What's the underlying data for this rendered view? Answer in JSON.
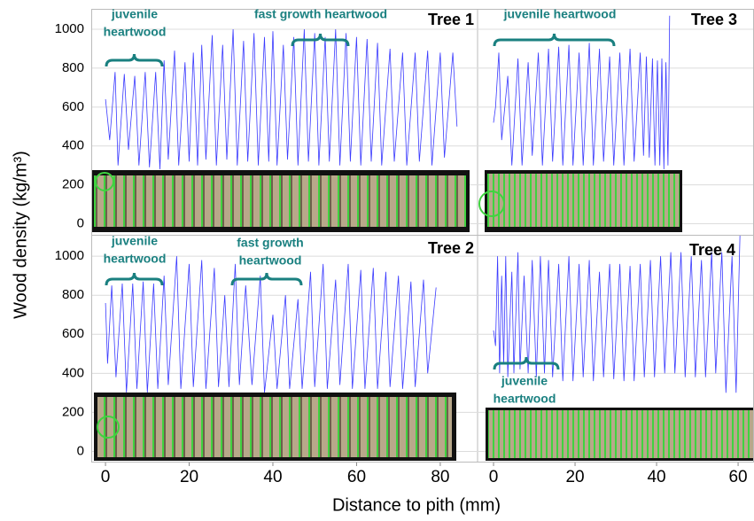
{
  "xlabel": "Distance to pith (mm)",
  "ylabel": "Wood density (kg/m³)",
  "chart_data": [
    {
      "type": "line",
      "title": "Tree 1",
      "color": "#3a3aff",
      "xlim": [
        -3.4,
        88.7
      ],
      "ylim": [
        -57,
        1105
      ],
      "yticks": [
        0,
        200,
        400,
        600,
        800,
        1000
      ],
      "grid": true,
      "annotations": [
        {
          "lines": [
            "juvenile",
            "heartwood"
          ]
        },
        {
          "lines": [
            "fast growth heartwood"
          ]
        }
      ],
      "x": [
        0,
        1,
        2.3,
        3,
        4.5,
        5.5,
        7,
        8,
        9.5,
        10.5,
        12,
        13,
        14,
        15,
        16.5,
        17.5,
        19,
        20,
        21,
        22,
        23,
        24,
        25.5,
        26.5,
        28,
        29,
        30.5,
        31.5,
        33,
        34,
        35.5,
        36.5,
        38,
        39,
        40,
        41,
        42.5,
        43.5,
        45,
        46,
        47.5,
        48.5,
        50,
        51,
        52.5,
        53.5,
        55,
        56,
        57.5,
        58.5,
        60,
        61,
        62.5,
        63.5,
        65,
        66,
        68,
        69,
        71,
        72,
        74,
        75,
        77,
        78,
        80,
        81,
        83,
        84
      ],
      "values": [
        640,
        430,
        780,
        300,
        770,
        380,
        760,
        300,
        780,
        290,
        780,
        280,
        840,
        330,
        890,
        300,
        830,
        320,
        880,
        300,
        920,
        330,
        970,
        300,
        920,
        330,
        1000,
        300,
        940,
        320,
        980,
        300,
        960,
        320,
        990,
        300,
        920,
        330,
        960,
        300,
        1000,
        320,
        980,
        300,
        960,
        320,
        1000,
        300,
        980,
        320,
        960,
        300,
        950,
        320,
        930,
        300,
        900,
        320,
        880,
        300,
        880,
        320,
        890,
        300,
        880,
        340,
        880,
        500
      ]
    },
    {
      "type": "line",
      "title": "Tree 2",
      "color": "#3a3aff",
      "xlim": [
        -3.4,
        88.7
      ],
      "ylim": [
        -57,
        1105
      ],
      "xticks": [
        0,
        20,
        40,
        60,
        80
      ],
      "yticks": [
        0,
        200,
        400,
        600,
        800,
        1000
      ],
      "grid": true,
      "annotations": [
        {
          "lines": [
            "juvenile",
            "heartwood"
          ]
        },
        {
          "lines": [
            "fast growth",
            "heartwood"
          ]
        }
      ],
      "x": [
        0,
        0.5,
        1.5,
        2.5,
        4,
        5,
        6.5,
        7.5,
        9,
        10,
        11.5,
        12.5,
        14,
        15,
        17,
        18,
        20,
        21,
        23,
        24,
        26,
        27,
        28.5,
        29.5,
        31,
        32,
        33.5,
        35,
        37,
        38,
        40,
        41,
        43,
        44,
        46,
        47,
        49,
        50,
        52,
        53,
        55,
        56,
        58,
        59,
        61,
        62,
        64,
        65,
        67,
        68,
        70,
        71,
        73,
        74,
        76,
        77,
        79
      ],
      "values": [
        760,
        450,
        850,
        380,
        860,
        300,
        860,
        320,
        870,
        300,
        860,
        320,
        900,
        340,
        1000,
        320,
        960,
        330,
        980,
        320,
        940,
        330,
        800,
        330,
        960,
        340,
        850,
        340,
        900,
        300,
        700,
        320,
        800,
        320,
        780,
        320,
        920,
        330,
        960,
        320,
        880,
        340,
        960,
        320,
        930,
        320,
        940,
        320,
        920,
        330,
        900,
        320,
        870,
        330,
        880,
        400,
        840
      ]
    },
    {
      "type": "line",
      "title": "Tree 3",
      "color": "#3a3aff",
      "xlim": [
        -3.7,
        63.9
      ],
      "ylim": [
        -57,
        1105
      ],
      "yticks": [
        0,
        200,
        400,
        600,
        800,
        1000
      ],
      "grid": true,
      "annotations": [
        {
          "lines": [
            "juvenile heartwood"
          ]
        }
      ],
      "x": [
        0,
        0.5,
        1.3,
        2,
        3.5,
        4.5,
        6,
        7,
        8.5,
        9.5,
        11,
        12,
        13.5,
        14.5,
        16,
        17,
        18.5,
        19.5,
        21,
        22,
        23.5,
        24.5,
        26,
        27,
        28.5,
        29.5,
        31,
        32,
        33.5,
        34.5,
        36,
        36.8,
        37.5,
        38.2,
        39,
        39.6,
        40.2,
        40.8,
        41.3,
        41.8,
        42.3,
        42.8,
        43.2
      ],
      "values": [
        520,
        600,
        880,
        430,
        760,
        300,
        850,
        300,
        830,
        350,
        880,
        300,
        900,
        320,
        910,
        300,
        920,
        300,
        880,
        300,
        930,
        300,
        900,
        320,
        860,
        300,
        880,
        300,
        900,
        320,
        880,
        350,
        860,
        340,
        850,
        300,
        840,
        300,
        850,
        280,
        830,
        300,
        1070
      ]
    },
    {
      "type": "line",
      "title": "Tree 4",
      "color": "#3a3aff",
      "xlim": [
        -3.7,
        63.9
      ],
      "ylim": [
        -57,
        1105
      ],
      "xticks": [
        0,
        20,
        40,
        60
      ],
      "yticks": [
        0,
        200,
        400,
        600,
        800,
        1000
      ],
      "grid": true,
      "annotations": [
        {
          "lines": [
            "juvenile",
            "heartwood"
          ]
        }
      ],
      "x": [
        0,
        0.5,
        1,
        1.5,
        2,
        2.5,
        3,
        3.5,
        4.5,
        5,
        6,
        6.5,
        7.5,
        8.5,
        9.5,
        10.5,
        11.5,
        12.5,
        13.5,
        14.5,
        16,
        17,
        18.5,
        19.5,
        21,
        22,
        23.5,
        24.5,
        26,
        27,
        28.5,
        29.5,
        31,
        32,
        33.5,
        34.5,
        36,
        37,
        38.5,
        39.5,
        41,
        42,
        43.5,
        44.5,
        46,
        47,
        48.5,
        49.5,
        51,
        52,
        53.5,
        54.5,
        56,
        57,
        58.5,
        59.5,
        60.5
      ],
      "values": [
        620,
        540,
        1000,
        400,
        900,
        450,
        1000,
        380,
        920,
        400,
        1020,
        420,
        900,
        400,
        980,
        380,
        1000,
        400,
        980,
        380,
        960,
        360,
        1000,
        360,
        960,
        380,
        980,
        360,
        920,
        380,
        960,
        370,
        960,
        360,
        950,
        360,
        960,
        380,
        980,
        380,
        1000,
        400,
        1020,
        400,
        1020,
        380,
        1000,
        380,
        980,
        380,
        1020,
        400,
        1020,
        300,
        1000,
        300,
        1150
      ]
    }
  ]
}
